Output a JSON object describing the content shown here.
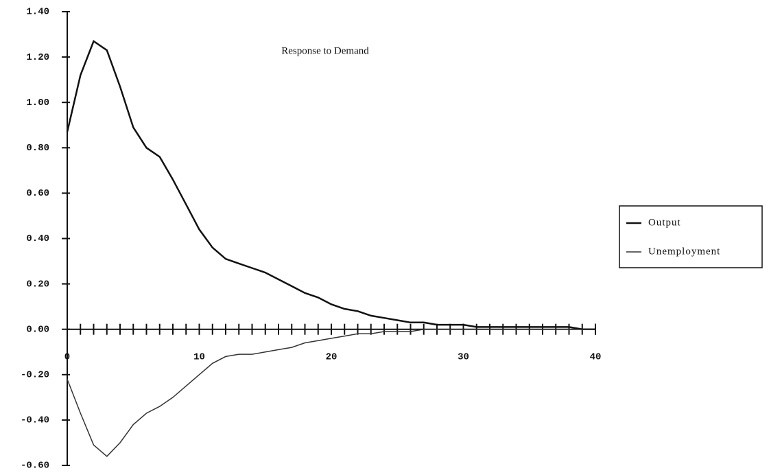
{
  "chart_data": {
    "type": "line",
    "title": "Response to Demand",
    "x": [
      0,
      1,
      2,
      3,
      4,
      5,
      6,
      7,
      8,
      9,
      10,
      11,
      12,
      13,
      14,
      15,
      16,
      17,
      18,
      19,
      20,
      21,
      22,
      23,
      24,
      25,
      26,
      27,
      28,
      29,
      30,
      31,
      32,
      33,
      34,
      35,
      36,
      37,
      38,
      39,
      40
    ],
    "series": [
      {
        "name": "Output",
        "color": "#111111",
        "values": [
          0.87,
          1.12,
          1.27,
          1.23,
          1.07,
          0.89,
          0.8,
          0.76,
          0.66,
          0.55,
          0.44,
          0.36,
          0.31,
          0.29,
          0.27,
          0.25,
          0.22,
          0.19,
          0.16,
          0.14,
          0.11,
          0.09,
          0.08,
          0.06,
          0.05,
          0.04,
          0.03,
          0.03,
          0.02,
          0.02,
          0.02,
          0.01,
          0.01,
          0.01,
          0.01,
          0.01,
          0.01,
          0.01,
          0.01,
          0.0,
          0.0
        ]
      },
      {
        "name": "Unemployment",
        "color": "#333333",
        "values": [
          -0.22,
          -0.37,
          -0.51,
          -0.56,
          -0.5,
          -0.42,
          -0.37,
          -0.34,
          -0.3,
          -0.25,
          -0.2,
          -0.15,
          -0.12,
          -0.11,
          -0.11,
          -0.1,
          -0.09,
          -0.08,
          -0.06,
          -0.05,
          -0.04,
          -0.03,
          -0.02,
          -0.02,
          -0.01,
          -0.01,
          -0.01,
          0.0,
          0.0,
          0.0,
          0.0,
          0.0,
          0.0,
          0.0,
          0.0,
          0.0,
          0.0,
          0.0,
          0.0,
          0.0,
          0.0
        ]
      }
    ],
    "xlim": [
      0,
      40
    ],
    "xticks": [
      0,
      10,
      20,
      30,
      40
    ],
    "ylim": [
      -0.6,
      1.4
    ],
    "yticks": [
      {
        "value": -0.6,
        "label": "-0.60"
      },
      {
        "value": -0.4,
        "label": "-0.40"
      },
      {
        "value": -0.2,
        "label": "-0.20"
      },
      {
        "value": 0,
        "label": "0.00"
      },
      {
        "value": 0.2,
        "label": "0.20"
      },
      {
        "value": 0.4,
        "label": "0.40"
      },
      {
        "value": 0.6,
        "label": "0.60"
      },
      {
        "value": 0.8,
        "label": "0.80"
      },
      {
        "value": 1.0,
        "label": "1.00"
      },
      {
        "value": 1.2,
        "label": "1.20"
      },
      {
        "value": 1.4,
        "label": "1.40"
      }
    ],
    "grid": false,
    "legend": "right"
  }
}
